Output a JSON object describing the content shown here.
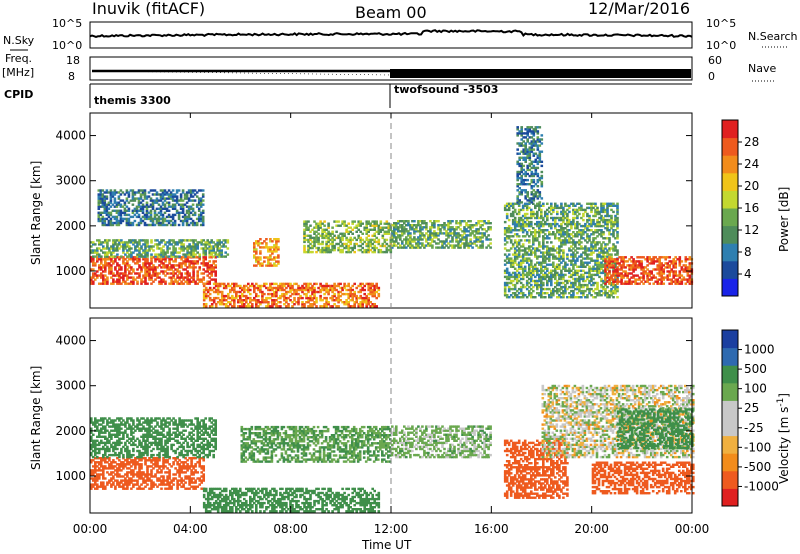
{
  "header": {
    "left_title": "Inuvik (fitACF)",
    "center_title": "Beam 00",
    "right_title": "12/Mar/2016"
  },
  "aux": {
    "nsky_label": "N.Sky",
    "nsky_ticks": [
      "10^5",
      "10^0"
    ],
    "nsearch_ticks": [
      "10^5",
      "10^0"
    ],
    "nsearch_label": "N.Search",
    "freq_label": "Freq.",
    "freq_unit": "[MHz]",
    "freq_ticks": [
      "18",
      "8"
    ],
    "nave_ticks": [
      "60",
      "0"
    ],
    "nave_label": "Nave",
    "cpid_label": "CPID",
    "cpid_segments": [
      "themis 3300",
      "twofsound -3503"
    ]
  },
  "colors": {
    "power_scale": [
      "#1a24e8",
      "#1b4a9c",
      "#2e7fb0",
      "#4e8c5a",
      "#6aa84f",
      "#c3d830",
      "#f0c419",
      "#f28c1b",
      "#ee5a1e",
      "#e02020"
    ],
    "velocity_scale": [
      "#e02020",
      "#ee5a1e",
      "#f28c1b",
      "#f0b040",
      "#c8c8c8",
      "#c8c8c8",
      "#6aa84f",
      "#3f8f4a",
      "#2e6ab0",
      "#1b3fa0"
    ]
  },
  "chart_data": [
    {
      "type": "heatmap",
      "name": "power",
      "ylabel": "Slant Range [km]",
      "yticks": [
        "4000",
        "3000",
        "2000",
        "1000"
      ],
      "ylim": [
        180,
        4500
      ],
      "colorbar_label": "Power [dB]",
      "colorbar_ticks": [
        "28",
        "24",
        "20",
        "16",
        "12",
        "8",
        "4"
      ],
      "colorbar_range": [
        0,
        30
      ],
      "bands": [
        {
          "t0": 0.0,
          "t1": 5.0,
          "r0": 700,
          "r1": 1300,
          "level": 26
        },
        {
          "t0": 0.0,
          "t1": 5.5,
          "r0": 1300,
          "r1": 1700,
          "level": 12
        },
        {
          "t0": 0.3,
          "t1": 4.5,
          "r0": 2000,
          "r1": 2800,
          "level": 8
        },
        {
          "t0": 4.5,
          "t1": 11.5,
          "r0": 200,
          "r1": 700,
          "level": 24
        },
        {
          "t0": 6.5,
          "t1": 7.5,
          "r0": 1100,
          "r1": 1700,
          "level": 22
        },
        {
          "t0": 8.5,
          "t1": 12.0,
          "r0": 1400,
          "r1": 2100,
          "level": 14
        },
        {
          "t0": 12.0,
          "t1": 16.0,
          "r0": 1500,
          "r1": 2100,
          "level": 12
        },
        {
          "t0": 16.5,
          "t1": 21.0,
          "r0": 400,
          "r1": 2500,
          "level": 12
        },
        {
          "t0": 20.5,
          "t1": 24.0,
          "r0": 700,
          "r1": 1300,
          "level": 26
        },
        {
          "t0": 17.0,
          "t1": 18.0,
          "r0": 2500,
          "r1": 4200,
          "level": 8
        }
      ]
    },
    {
      "type": "heatmap",
      "name": "velocity",
      "ylabel": "Slant Range [km]",
      "yticks": [
        "4000",
        "3000",
        "2000",
        "1000"
      ],
      "ylim": [
        180,
        4500
      ],
      "xlabel": "Time UT",
      "xticks": [
        "00:00",
        "04:00",
        "08:00",
        "12:00",
        "16:00",
        "20:00",
        "00:00"
      ],
      "xlim": [
        0,
        24
      ],
      "colorbar_label": "Velocity [m s^-1]",
      "colorbar_ticks": [
        "1000",
        "500",
        "100",
        "25",
        "-25",
        "-100",
        "-500",
        "-1000"
      ],
      "bands": [
        {
          "t0": 0.0,
          "t1": 4.5,
          "r0": 700,
          "r1": 1400,
          "v": -200
        },
        {
          "t0": 0.0,
          "t1": 5.0,
          "r0": 1400,
          "r1": 2300,
          "v": 200
        },
        {
          "t0": 4.5,
          "t1": 11.5,
          "r0": 200,
          "r1": 700,
          "v": 200
        },
        {
          "t0": 6.0,
          "t1": 12.0,
          "r0": 1300,
          "r1": 2100,
          "v": 100
        },
        {
          "t0": 12.0,
          "t1": 16.0,
          "r0": 1400,
          "r1": 2100,
          "v": 50
        },
        {
          "t0": 16.5,
          "t1": 19.0,
          "r0": 500,
          "r1": 1800,
          "v": -300
        },
        {
          "t0": 18.0,
          "t1": 24.0,
          "r0": 1400,
          "r1": 3000,
          "v": 0
        },
        {
          "t0": 20.0,
          "t1": 24.0,
          "r0": 600,
          "r1": 1300,
          "v": -200
        },
        {
          "t0": 21.0,
          "t1": 24.0,
          "r0": 1600,
          "r1": 2500,
          "v": 150
        }
      ]
    }
  ]
}
